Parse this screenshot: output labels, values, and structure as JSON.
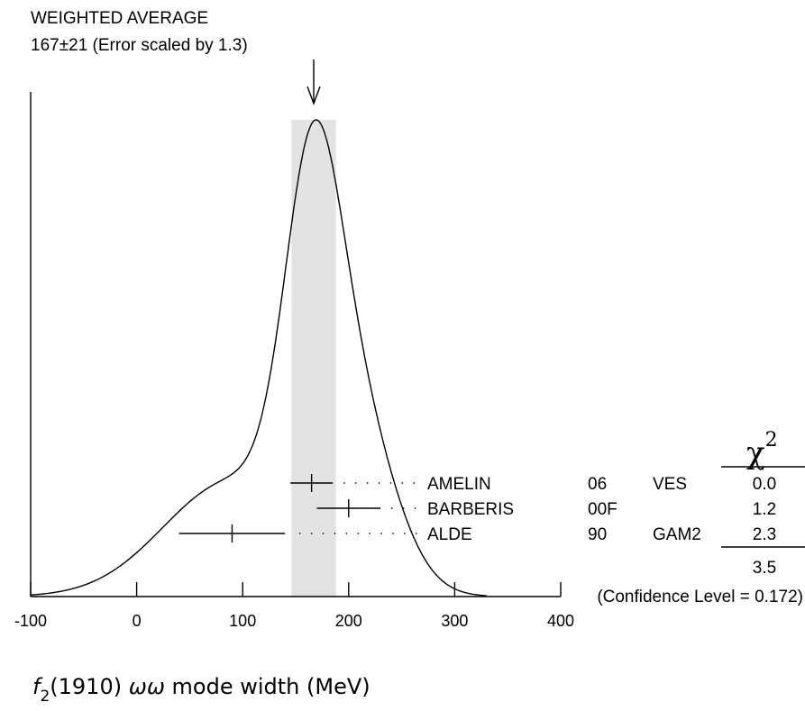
{
  "chart_data": {
    "type": "ideogram",
    "title": "WEIGHTED AVERAGE",
    "subtitle": "167±21 (Error scaled by 1.3)",
    "weighted_average": {
      "value": 167,
      "error": 21,
      "scale_factor": 1.3
    },
    "xlabel": {
      "prefix": "f",
      "sub": "2",
      "rest": "(1910) ",
      "greek": "ωω",
      "suffix": " mode width (MeV)"
    },
    "xlim": [
      -100,
      400
    ],
    "xticks": [
      -100,
      0,
      100,
      200,
      300,
      400
    ],
    "xtick_labels": [
      "-100",
      "0",
      "100",
      "200",
      "300",
      "400"
    ],
    "measurements": [
      {
        "author": "AMELIN",
        "year": "06",
        "technique": "VES",
        "value": 165,
        "err_low": 20,
        "err_high": 20,
        "chi2": "0.0"
      },
      {
        "author": "BARBERIS",
        "year": "00F",
        "technique": "",
        "value": 200,
        "err_low": 30,
        "err_high": 30,
        "chi2": "1.2"
      },
      {
        "author": "ALDE",
        "year": "90",
        "technique": "GAM2",
        "value": 90,
        "err_low": 50,
        "err_high": 50,
        "chi2": "2.3"
      }
    ],
    "chi2_header": "χ",
    "chi2_sup": "2",
    "chi2_total": "3.5",
    "confidence_level": "(Confidence Level = 0.172)"
  }
}
